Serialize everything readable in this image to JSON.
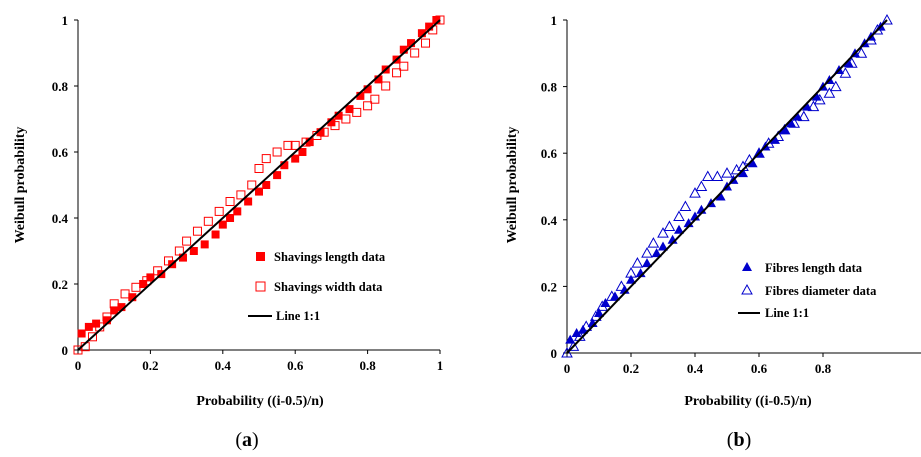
{
  "chart_data": [
    {
      "type": "scatter",
      "caption": "(a)",
      "caption_letter": "a",
      "xlabel": "Probability ((i-0.5)/n)",
      "ylabel": "Weibull probability",
      "xlim": [
        0,
        1
      ],
      "ylim": [
        0,
        1
      ],
      "xticks": [
        "0",
        "0.2",
        "0.4",
        "0.6",
        "0.8",
        "1"
      ],
      "yticks": [
        "0",
        "0.2",
        "0.4",
        "0.6",
        "0.8",
        "1"
      ],
      "legend_position": "bottom-right",
      "series": [
        {
          "name": "Shavings length data",
          "marker": "filled-square",
          "color": "#ff0000",
          "x": [
            0.01,
            0.03,
            0.05,
            0.08,
            0.1,
            0.12,
            0.15,
            0.18,
            0.2,
            0.23,
            0.26,
            0.29,
            0.32,
            0.35,
            0.38,
            0.4,
            0.42,
            0.44,
            0.47,
            0.5,
            0.52,
            0.55,
            0.57,
            0.6,
            0.62,
            0.64,
            0.67,
            0.7,
            0.72,
            0.75,
            0.78,
            0.8,
            0.83,
            0.85,
            0.88,
            0.9,
            0.92,
            0.95,
            0.97,
            0.99
          ],
          "y": [
            0.05,
            0.07,
            0.08,
            0.09,
            0.12,
            0.13,
            0.16,
            0.2,
            0.22,
            0.23,
            0.26,
            0.28,
            0.3,
            0.32,
            0.35,
            0.38,
            0.4,
            0.42,
            0.45,
            0.48,
            0.5,
            0.53,
            0.56,
            0.58,
            0.6,
            0.63,
            0.66,
            0.69,
            0.71,
            0.73,
            0.77,
            0.79,
            0.82,
            0.85,
            0.88,
            0.91,
            0.93,
            0.96,
            0.98,
            1.0
          ]
        },
        {
          "name": "Shavings width data",
          "marker": "open-square",
          "color": "#ff0000",
          "x": [
            0.0,
            0.02,
            0.04,
            0.06,
            0.08,
            0.1,
            0.13,
            0.16,
            0.19,
            0.22,
            0.25,
            0.28,
            0.3,
            0.33,
            0.36,
            0.39,
            0.42,
            0.45,
            0.48,
            0.5,
            0.52,
            0.55,
            0.58,
            0.6,
            0.63,
            0.66,
            0.68,
            0.71,
            0.74,
            0.77,
            0.8,
            0.82,
            0.85,
            0.88,
            0.9,
            0.93,
            0.96,
            0.98,
            1.0
          ],
          "y": [
            0.0,
            0.01,
            0.04,
            0.07,
            0.1,
            0.14,
            0.17,
            0.19,
            0.21,
            0.24,
            0.27,
            0.3,
            0.33,
            0.36,
            0.39,
            0.42,
            0.45,
            0.47,
            0.5,
            0.55,
            0.58,
            0.6,
            0.62,
            0.62,
            0.63,
            0.65,
            0.66,
            0.68,
            0.7,
            0.72,
            0.74,
            0.76,
            0.8,
            0.84,
            0.86,
            0.9,
            0.93,
            0.97,
            1.0
          ]
        },
        {
          "name": "Line 1:1",
          "marker": "line",
          "color": "#000000",
          "x": [
            0,
            1
          ],
          "y": [
            0,
            1
          ]
        }
      ]
    },
    {
      "type": "scatter",
      "caption": "(b)",
      "caption_letter": "b",
      "xlabel": "Probability ((i-0.5)/n)",
      "ylabel": "Weibull probability",
      "xlim": [
        0,
        1
      ],
      "ylim": [
        0,
        1
      ],
      "xticks": [
        "0",
        "0.2",
        "0.4",
        "0.6",
        "0.8"
      ],
      "yticks": [
        "0",
        "0.2",
        "0.4",
        "0.6",
        "0.8",
        "1"
      ],
      "legend_position": "bottom-right",
      "series": [
        {
          "name": "Fibres length data",
          "marker": "filled-triangle",
          "color": "#0000cc",
          "x": [
            0.01,
            0.03,
            0.05,
            0.08,
            0.1,
            0.12,
            0.15,
            0.18,
            0.2,
            0.23,
            0.25,
            0.28,
            0.3,
            0.33,
            0.35,
            0.38,
            0.4,
            0.42,
            0.45,
            0.48,
            0.5,
            0.52,
            0.55,
            0.58,
            0.6,
            0.62,
            0.65,
            0.68,
            0.7,
            0.72,
            0.75,
            0.78,
            0.8,
            0.82,
            0.85,
            0.88,
            0.9,
            0.93,
            0.95,
            0.98
          ],
          "y": [
            0.04,
            0.06,
            0.07,
            0.09,
            0.12,
            0.15,
            0.17,
            0.19,
            0.22,
            0.24,
            0.27,
            0.3,
            0.32,
            0.34,
            0.37,
            0.39,
            0.41,
            0.43,
            0.45,
            0.47,
            0.5,
            0.52,
            0.54,
            0.57,
            0.6,
            0.62,
            0.64,
            0.67,
            0.69,
            0.71,
            0.74,
            0.77,
            0.8,
            0.82,
            0.85,
            0.87,
            0.9,
            0.93,
            0.95,
            0.98
          ]
        },
        {
          "name": "Fibres diameter data",
          "marker": "open-triangle",
          "color": "#0000cc",
          "x": [
            0.0,
            0.02,
            0.04,
            0.06,
            0.09,
            0.11,
            0.14,
            0.17,
            0.2,
            0.22,
            0.25,
            0.27,
            0.3,
            0.32,
            0.35,
            0.37,
            0.4,
            0.42,
            0.44,
            0.47,
            0.5,
            0.53,
            0.55,
            0.57,
            0.6,
            0.63,
            0.66,
            0.68,
            0.71,
            0.74,
            0.77,
            0.79,
            0.82,
            0.84,
            0.87,
            0.89,
            0.92,
            0.95,
            0.97,
            1.0
          ],
          "y": [
            0.0,
            0.02,
            0.05,
            0.08,
            0.11,
            0.14,
            0.17,
            0.2,
            0.24,
            0.27,
            0.3,
            0.33,
            0.36,
            0.38,
            0.41,
            0.44,
            0.48,
            0.5,
            0.53,
            0.53,
            0.54,
            0.55,
            0.56,
            0.58,
            0.6,
            0.63,
            0.65,
            0.67,
            0.69,
            0.71,
            0.74,
            0.76,
            0.78,
            0.8,
            0.84,
            0.87,
            0.9,
            0.94,
            0.97,
            1.0
          ]
        },
        {
          "name": "Line 1:1",
          "marker": "line",
          "color": "#000000",
          "x": [
            0,
            1
          ],
          "y": [
            0,
            1
          ]
        }
      ]
    }
  ]
}
